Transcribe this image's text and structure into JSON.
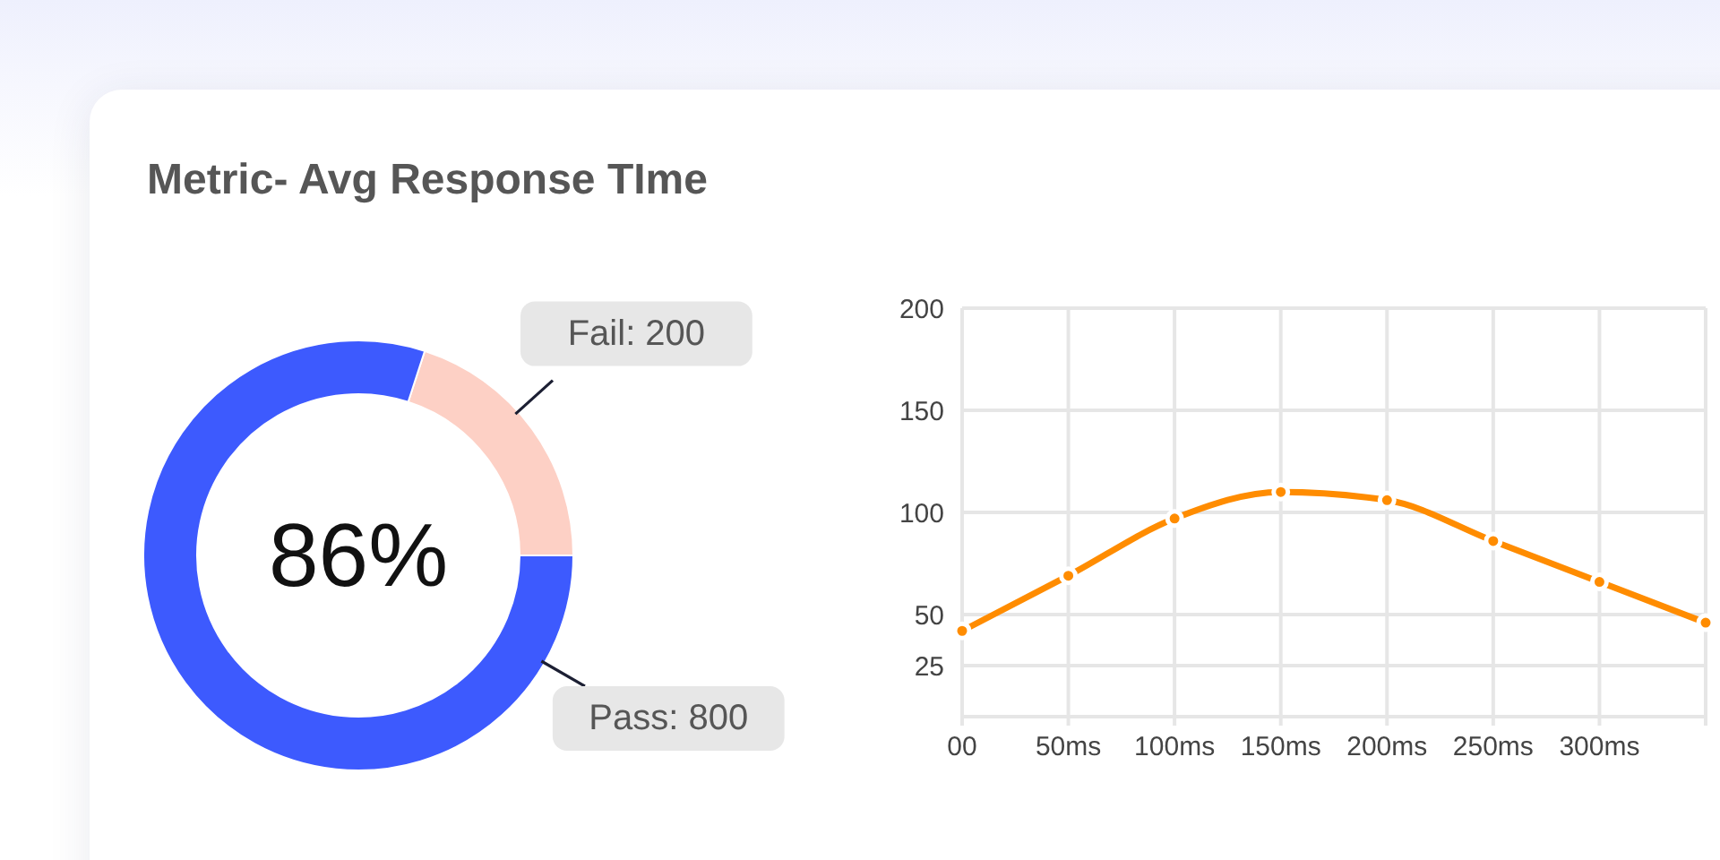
{
  "chart_data": [
    {
      "type": "donut",
      "title": "Metric- Avg Response TIme",
      "categories": [
        "Fail",
        "Pass"
      ],
      "values": [
        200,
        800
      ],
      "value_labels": [
        ": 200",
        ": 800"
      ],
      "colors": [
        "#fdd0c5",
        "#3d5afe"
      ],
      "annotations": [
        "86%"
      ]
    },
    {
      "type": "line",
      "categories": [
        "00",
        "50ms",
        "100ms",
        "150ms",
        "200ms",
        "250ms",
        "300ms",
        null
      ],
      "series": [
        {
          "color": "#ff8c00",
          "values": [
            42,
            69,
            97,
            110,
            106,
            86,
            66,
            46
          ]
        }
      ],
      "ylim": [
        0,
        200
      ],
      "yticks": [
        25,
        50,
        100,
        150,
        200
      ],
      "grid": true,
      "marker": "circle"
    }
  ]
}
